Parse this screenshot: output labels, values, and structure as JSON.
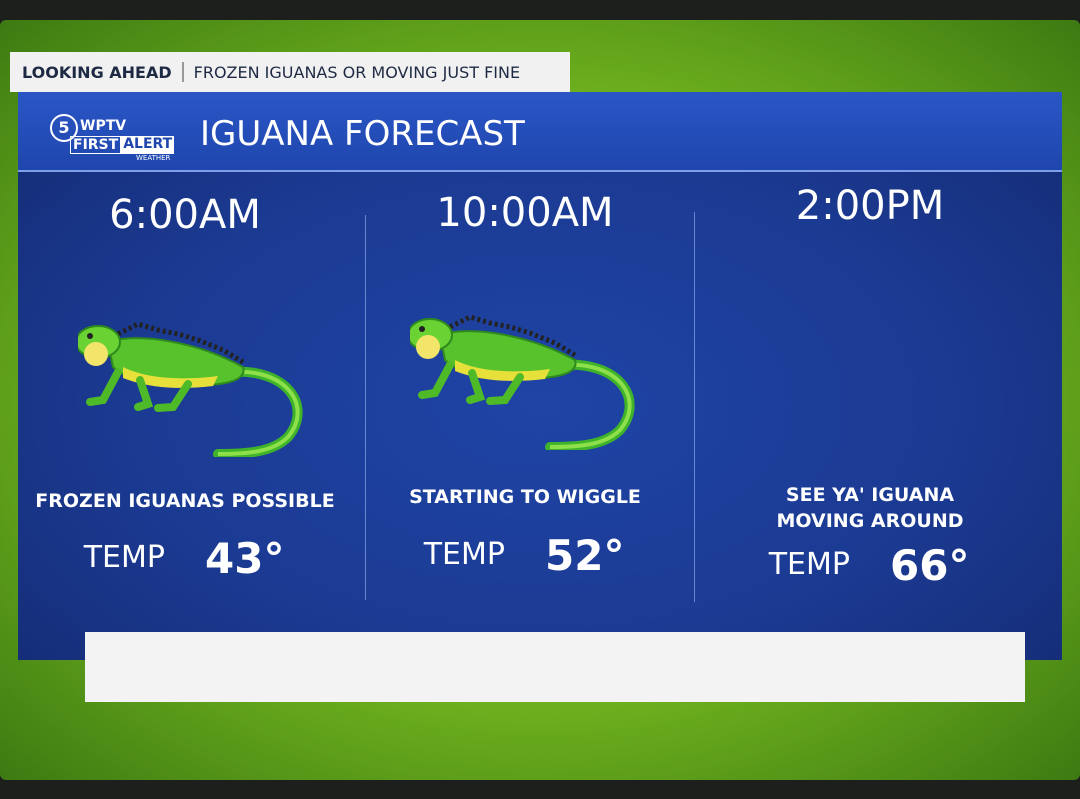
{
  "banner": {
    "section": "LOOKING AHEAD",
    "headline": "FROZEN IGUANAS OR MOVING JUST FINE"
  },
  "logo": {
    "channel": "5",
    "station": "WPTV",
    "brand_first": "FIRST",
    "brand_second": "ALERT",
    "tagline": "WEATHER"
  },
  "title": "IGUANA FORECAST",
  "columns": [
    {
      "time": "6:00AM",
      "status_lines": [
        "FROZEN IGUANAS POSSIBLE"
      ],
      "temp_label": "TEMP",
      "temp": "43°"
    },
    {
      "time": "10:00AM",
      "status_lines": [
        "STARTING TO WIGGLE"
      ],
      "temp_label": "TEMP",
      "temp": "52°"
    },
    {
      "time": "2:00PM",
      "status_lines": [
        "SEE YA' IGUANA",
        "MOVING AROUND"
      ],
      "temp_label": "TEMP",
      "temp": "66°"
    }
  ]
}
